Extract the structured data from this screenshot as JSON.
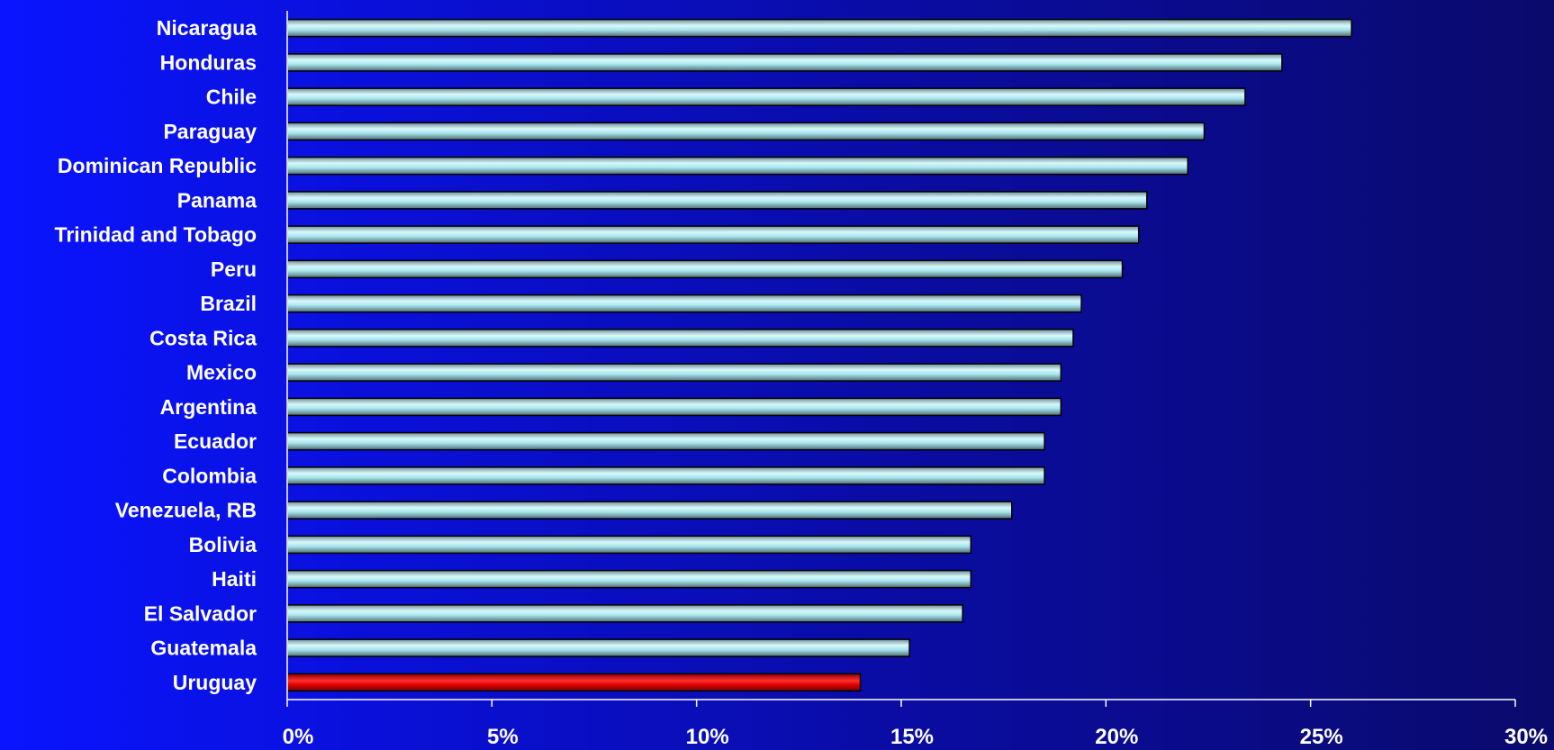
{
  "chart_data": {
    "type": "bar",
    "orientation": "horizontal",
    "categories": [
      "Nicaragua",
      "Honduras",
      "Chile",
      "Paraguay",
      "Dominican Republic",
      "Panama",
      "Trinidad and Tobago",
      "Peru",
      "Brazil",
      "Costa Rica",
      "Mexico",
      "Argentina",
      "Ecuador",
      "Colombia",
      "Venezuela, RB",
      "Bolivia",
      "Haiti",
      "El Salvador",
      "Guatemala",
      "Uruguay"
    ],
    "values": [
      26.0,
      24.3,
      23.4,
      22.4,
      22.0,
      21.0,
      20.8,
      20.4,
      19.4,
      19.2,
      18.9,
      18.9,
      18.5,
      18.5,
      17.7,
      16.7,
      16.7,
      16.5,
      15.2,
      14.0
    ],
    "highlight": "Uruguay",
    "xlim": [
      0,
      30
    ],
    "x_ticks": [
      "0%",
      "5%",
      "10%",
      "15%",
      "20%",
      "25%",
      "30%"
    ],
    "title": "",
    "xlabel": "",
    "ylabel": "",
    "grid": false,
    "colors": {
      "bar": "#a8e6ee",
      "bar_highlight": "#e00000",
      "bar_outline": "#000000",
      "axis": "#ffffff",
      "text": "#ffffff"
    }
  }
}
